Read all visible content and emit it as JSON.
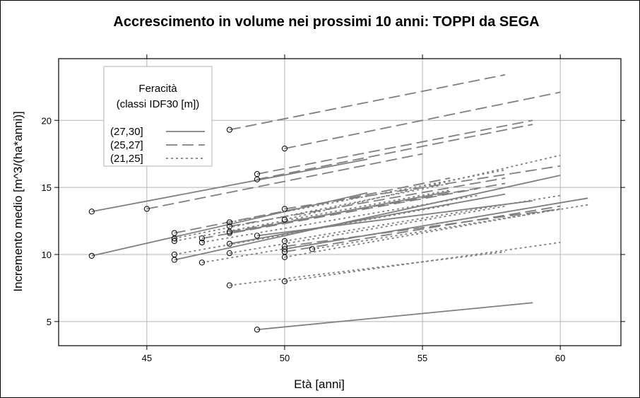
{
  "chart_data": {
    "type": "line",
    "title": "Accrescimento in volume nei prossimi 10 anni: TOPPI da SEGA",
    "xlabel": "Età [anni]",
    "ylabel": "Incremento medio [m^3/(ha*anni)]",
    "xlim": [
      41.8,
      62.2
    ],
    "ylim": [
      3.2,
      24.6
    ],
    "xticks": [
      45,
      50,
      55,
      60
    ],
    "yticks": [
      5,
      10,
      15,
      20
    ],
    "grid": true,
    "legend": {
      "position": "top-left",
      "title": [
        "Feracità",
        "(classi IDF30 [m])"
      ],
      "entries": [
        "(27,30]",
        "(25,27]",
        "(21,25]"
      ]
    },
    "series": [
      {
        "name": "(27,30]",
        "style": "solid",
        "segments": [
          {
            "x": [
              43,
              53
            ],
            "y": [
              13.2,
              17.1
            ]
          },
          {
            "x": [
              43,
              53
            ],
            "y": [
              9.9,
              14.6
            ]
          },
          {
            "x": [
              46,
              60
            ],
            "y": [
              9.6,
              15.9
            ]
          },
          {
            "x": [
              48,
              56
            ],
            "y": [
              11.6,
              14.7
            ]
          },
          {
            "x": [
              49,
              59
            ],
            "y": [
              11.4,
              14.0
            ]
          },
          {
            "x": [
              50,
              61
            ],
            "y": [
              10.4,
              14.2
            ]
          },
          {
            "x": [
              48,
              58
            ],
            "y": [
              10.8,
              14.5
            ]
          },
          {
            "x": [
              49,
              59
            ],
            "y": [
              4.4,
              6.4
            ]
          }
        ]
      },
      {
        "name": "(25,27]",
        "style": "dashed",
        "segments": [
          {
            "x": [
              48,
              58
            ],
            "y": [
              19.3,
              23.4
            ]
          },
          {
            "x": [
              50,
              60
            ],
            "y": [
              17.9,
              22.1
            ]
          },
          {
            "x": [
              49,
              59
            ],
            "y": [
              16.0,
              20.0
            ]
          },
          {
            "x": [
              49,
              59
            ],
            "y": [
              15.6,
              19.7
            ]
          },
          {
            "x": [
              45,
              55
            ],
            "y": [
              13.4,
              17.5
            ]
          },
          {
            "x": [
              46,
              56
            ],
            "y": [
              11.6,
              15.7
            ]
          },
          {
            "x": [
              48,
              58
            ],
            "y": [
              12.1,
              15.7
            ]
          },
          {
            "x": [
              50,
              60
            ],
            "y": [
              13.4,
              16.6
            ]
          },
          {
            "x": [
              50,
              60
            ],
            "y": [
              10.6,
              13.4
            ]
          },
          {
            "x": [
              47,
              57
            ],
            "y": [
              11.2,
              14.9
            ]
          },
          {
            "x": [
              48,
              58
            ],
            "y": [
              11.7,
              15.3
            ]
          },
          {
            "x": [
              50,
              60
            ],
            "y": [
              10.2,
              13.6
            ]
          }
        ]
      },
      {
        "name": "(21,25]",
        "style": "dotted",
        "segments": [
          {
            "x": [
              50,
              60
            ],
            "y": [
              12.6,
              17.4
            ]
          },
          {
            "x": [
              46,
              56
            ],
            "y": [
              11.2,
              15.3
            ]
          },
          {
            "x": [
              46,
              56
            ],
            "y": [
              11.0,
              14.8
            ]
          },
          {
            "x": [
              47,
              57
            ],
            "y": [
              10.9,
              14.4
            ]
          },
          {
            "x": [
              48,
              58
            ],
            "y": [
              12.4,
              16.3
            ]
          },
          {
            "x": [
              46,
              56
            ],
            "y": [
              10.0,
              13.7
            ]
          },
          {
            "x": [
              47,
              57
            ],
            "y": [
              9.4,
              12.8
            ]
          },
          {
            "x": [
              48,
              58
            ],
            "y": [
              10.1,
              13.6
            ]
          },
          {
            "x": [
              50,
              60
            ],
            "y": [
              11.0,
              14.4
            ]
          },
          {
            "x": [
              51,
              61
            ],
            "y": [
              10.4,
              13.7
            ]
          },
          {
            "x": [
              50,
              60
            ],
            "y": [
              9.8,
              13.4
            ]
          },
          {
            "x": [
              48,
              58
            ],
            "y": [
              7.7,
              10.2
            ]
          },
          {
            "x": [
              50,
              60
            ],
            "y": [
              8.0,
              10.9
            ]
          }
        ]
      }
    ]
  }
}
